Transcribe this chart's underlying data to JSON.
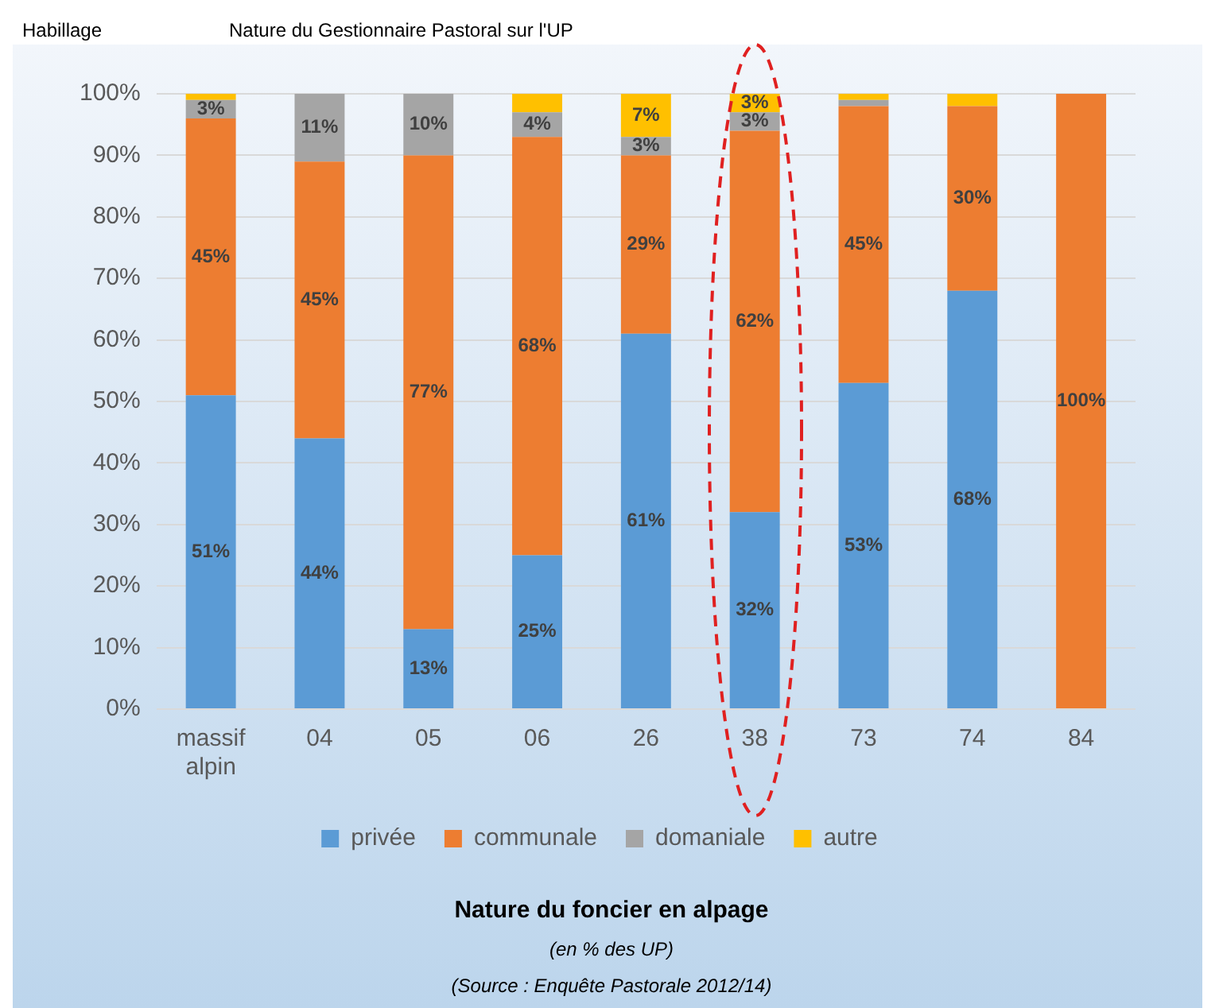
{
  "chart_data": {
    "type": "bar",
    "stacked": true,
    "title": "Nature du foncier en alpage",
    "subtitle": "(en % des UP)",
    "annotations": [
      "Habillage",
      "Nature du Gestionnaire Pastoral sur l'UP",
      "(Source : Enquête Pastorale 2012/14)"
    ],
    "categories": [
      "massif alpin",
      "04",
      "05",
      "06",
      "26",
      "38",
      "73",
      "74",
      "84"
    ],
    "series": [
      {
        "name": "privée",
        "color": "#5b9bd5",
        "values": [
          51,
          44,
          13,
          25,
          61,
          32,
          53,
          68,
          0
        ],
        "value_labels": [
          "51%",
          "44%",
          "13%",
          "25%",
          "61%",
          "32%",
          "53%",
          "68%",
          null
        ]
      },
      {
        "name": "communale",
        "color": "#ed7d31",
        "values": [
          45,
          45,
          77,
          68,
          29,
          62,
          45,
          30,
          100
        ],
        "value_labels": [
          "45%",
          "45%",
          "77%",
          "68%",
          "29%",
          "62%",
          "45%",
          "30%",
          "100%"
        ]
      },
      {
        "name": "domaniale",
        "color": "#a5a5a5",
        "values": [
          3,
          11,
          10,
          4,
          3,
          3,
          1,
          0,
          0
        ],
        "value_labels": [
          "3%",
          "11%",
          "10%",
          "4%",
          "3%",
          "3%",
          null,
          null,
          null
        ]
      },
      {
        "name": "autre",
        "color": "#ffc000",
        "values": [
          1,
          0,
          0,
          3,
          7,
          3,
          1,
          2,
          0
        ],
        "value_labels": [
          null,
          null,
          null,
          null,
          "7%",
          "3%",
          null,
          null,
          null
        ]
      }
    ],
    "ylim": [
      0,
      100
    ],
    "yticks": [
      {
        "value": 0,
        "label": "0%"
      },
      {
        "value": 10,
        "label": "10%"
      },
      {
        "value": 20,
        "label": "20%"
      },
      {
        "value": 30,
        "label": "30%"
      },
      {
        "value": 40,
        "label": "40%"
      },
      {
        "value": 50,
        "label": "50%"
      },
      {
        "value": 60,
        "label": "60%"
      },
      {
        "value": 70,
        "label": "70%"
      },
      {
        "value": 80,
        "label": "80%"
      },
      {
        "value": 90,
        "label": "90%"
      },
      {
        "value": 100,
        "label": "100%"
      }
    ],
    "grid": "y",
    "legend": "bottom"
  }
}
